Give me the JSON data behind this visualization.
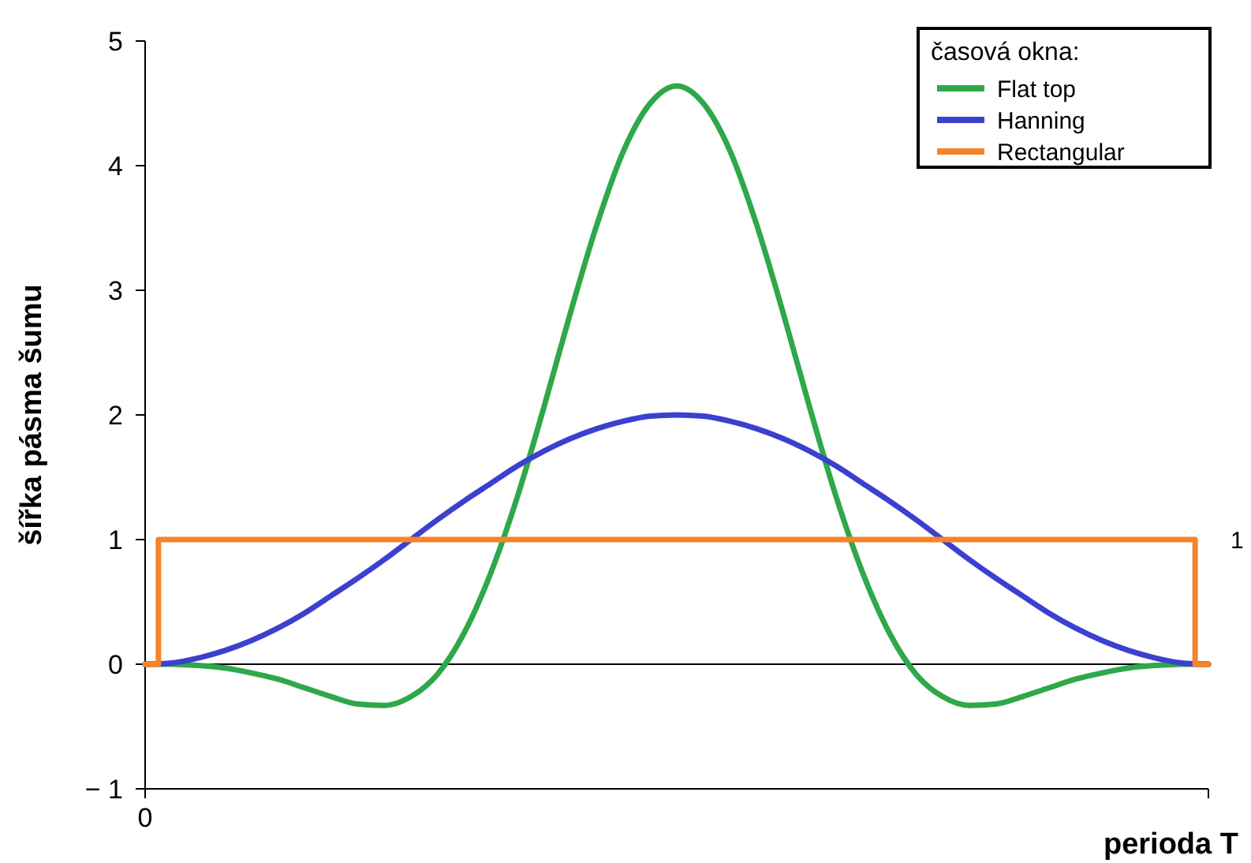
{
  "chart_data": {
    "type": "line",
    "xlabel": "perioda T",
    "ylabel": "šířka pásma šumu",
    "legend_title": "časová okna:",
    "legend": "top right",
    "grid": false,
    "line_style": "solid",
    "marker": "none",
    "categories": [
      "0",
      null,
      null,
      null,
      null,
      null,
      null,
      null,
      null,
      null,
      null,
      null,
      null,
      null,
      null,
      null,
      null,
      null,
      null,
      null,
      null,
      null,
      null,
      null,
      null,
      null,
      null,
      null,
      null,
      null,
      null,
      null,
      null,
      null,
      null,
      null,
      null,
      null,
      null,
      null,
      null
    ],
    "ylim": [
      -1,
      5
    ],
    "yticks": [
      {
        "value": -1,
        "label": "− 1"
      },
      {
        "value": 0,
        "label": "0"
      },
      {
        "value": 1,
        "label": "1"
      },
      {
        "value": 2,
        "label": "2"
      },
      {
        "value": 3,
        "label": "3"
      },
      {
        "value": 4,
        "label": "4"
      },
      {
        "value": 5,
        "label": "5"
      }
    ],
    "ref_lines": [
      {
        "axis": "y",
        "value": 0,
        "color": "#000000"
      }
    ],
    "annotations": [
      "1"
    ],
    "series": [
      {
        "name": "Flat top",
        "color": "#2ea84a",
        "values": [
          0,
          0,
          -0.01,
          -0.03,
          -0.07,
          -0.12,
          -0.19,
          -0.26,
          -0.32,
          -0.33,
          -0.26,
          -0.08,
          0.25,
          0.73,
          1.34,
          2.06,
          2.82,
          3.53,
          4.12,
          4.5,
          4.64,
          4.5,
          4.12,
          3.53,
          2.82,
          2.06,
          1.34,
          0.73,
          0.25,
          -0.08,
          -0.26,
          -0.33,
          -0.32,
          -0.26,
          -0.19,
          -0.12,
          -0.07,
          -0.03,
          -0.01,
          0,
          0
        ]
      },
      {
        "name": "Hanning",
        "color": "#3c40cf",
        "values": [
          0,
          0.01,
          0.05,
          0.11,
          0.19,
          0.29,
          0.41,
          0.55,
          0.69,
          0.84,
          1,
          1.16,
          1.31,
          1.45,
          1.59,
          1.71,
          1.81,
          1.89,
          1.95,
          1.99,
          2,
          1.99,
          1.95,
          1.89,
          1.81,
          1.71,
          1.59,
          1.45,
          1.31,
          1.16,
          1,
          0.84,
          0.69,
          0.55,
          0.41,
          0.29,
          0.19,
          0.11,
          0.05,
          0.01,
          0
        ]
      },
      {
        "name": "Rectangular",
        "type": "step",
        "color": "#f5832a",
        "values": [
          0,
          1,
          1,
          1,
          1,
          1,
          1,
          1,
          1,
          1,
          1,
          1,
          1,
          1,
          1,
          1,
          1,
          1,
          1,
          1,
          1,
          1,
          1,
          1,
          1,
          1,
          1,
          1,
          1,
          1,
          1,
          1,
          1,
          1,
          1,
          1,
          1,
          1,
          1,
          1,
          0
        ]
      }
    ]
  }
}
